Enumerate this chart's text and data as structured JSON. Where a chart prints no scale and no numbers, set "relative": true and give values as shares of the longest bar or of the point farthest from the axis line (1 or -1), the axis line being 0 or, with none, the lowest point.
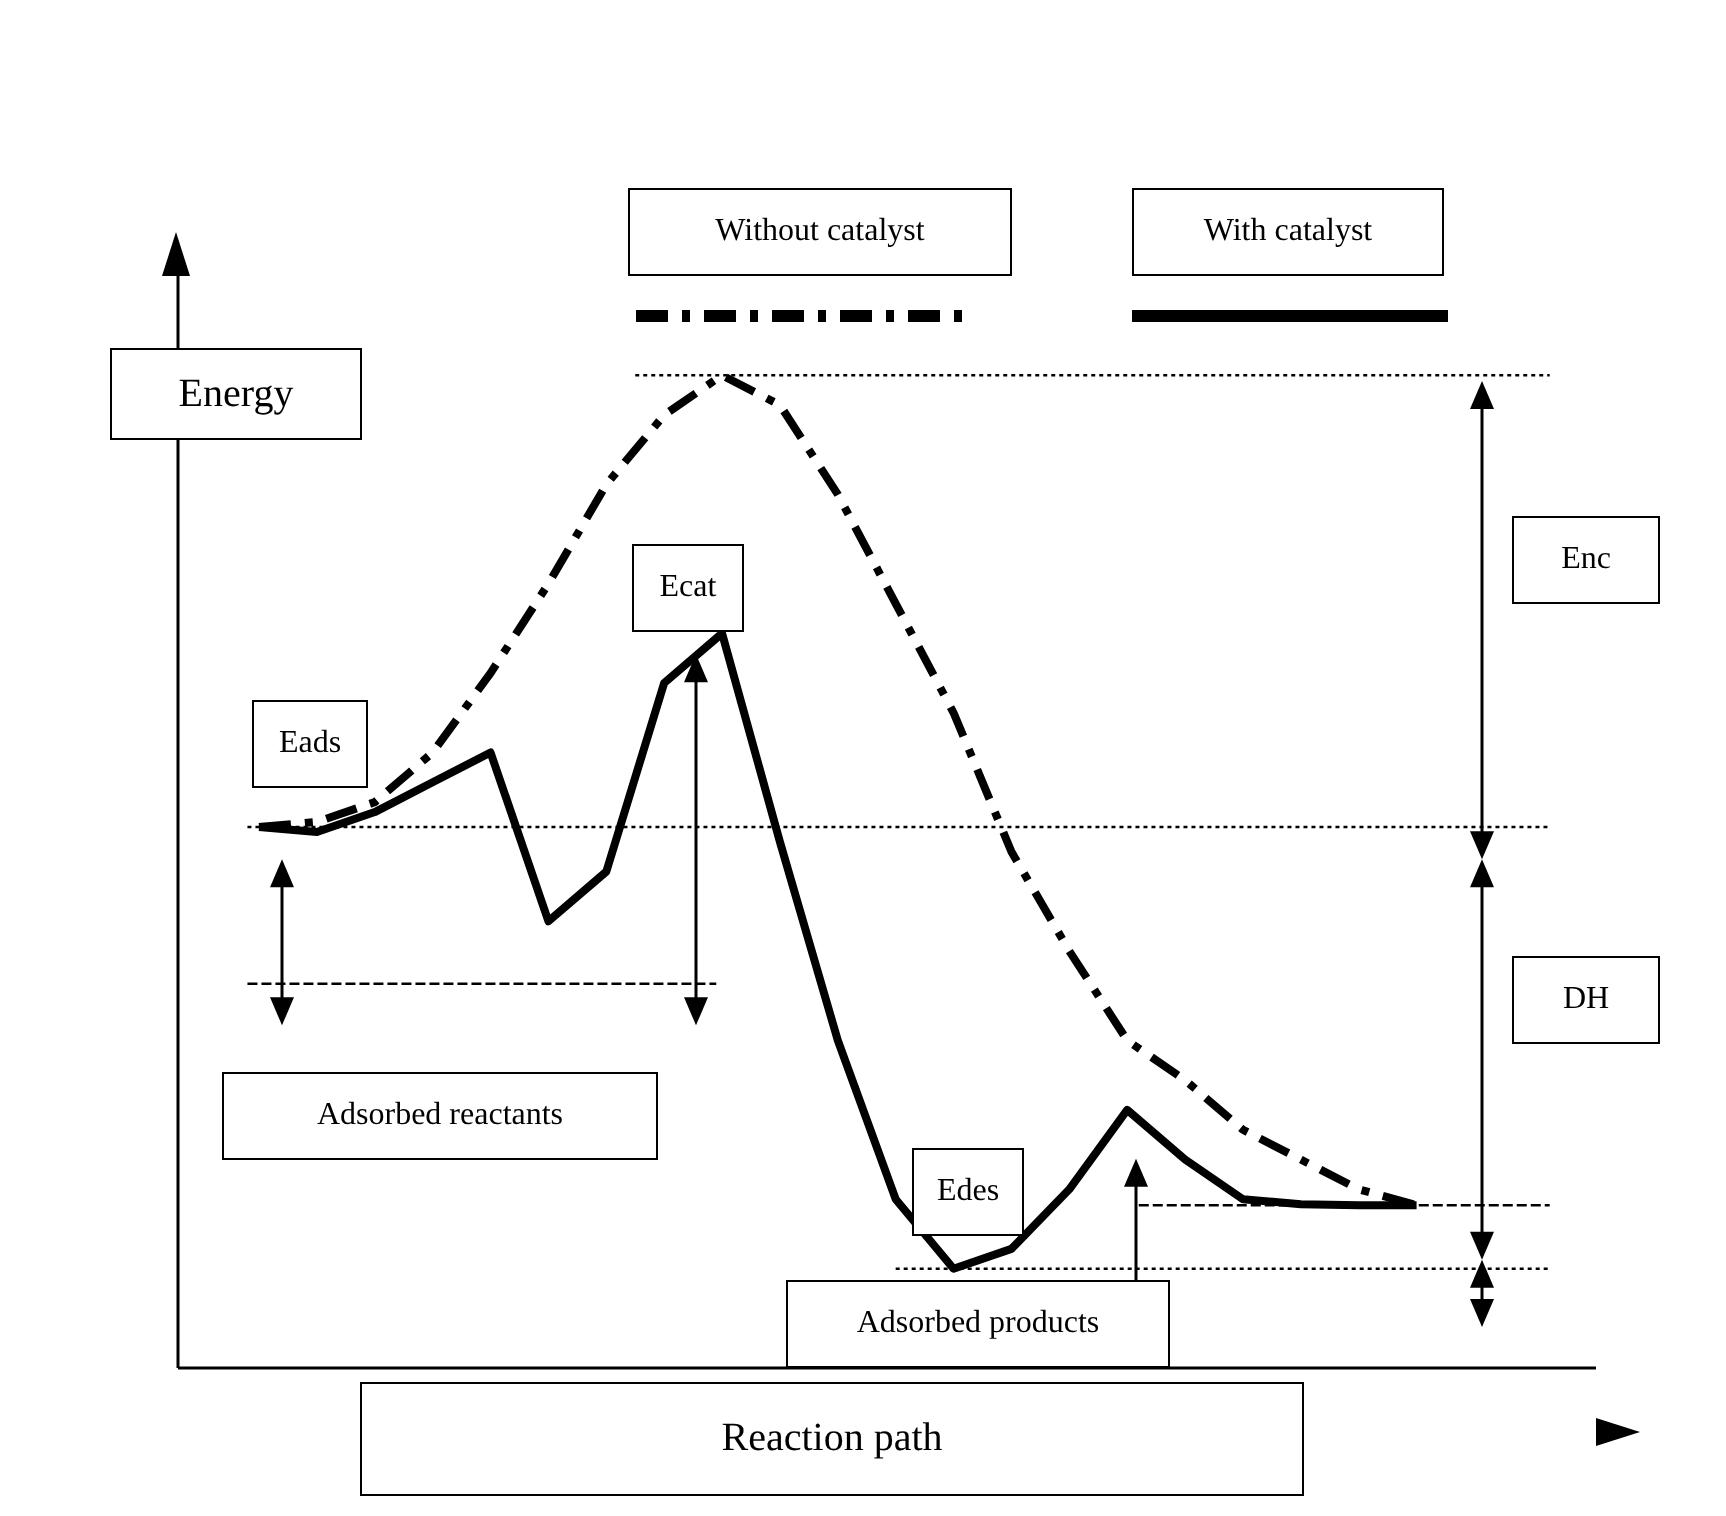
{
  "chart_data": {
    "type": "line",
    "relative": true,
    "xlabel": "Reaction path",
    "ylabel": "Energy",
    "legend": "top",
    "categories": [
      null,
      null,
      null,
      null,
      null,
      null,
      null,
      null,
      null,
      null,
      null,
      null,
      null,
      null,
      null,
      null,
      null,
      null,
      null,
      null,
      null
    ],
    "series": [
      {
        "name": "Without catalyst",
        "color": "#000000",
        "line_style": "dashed",
        "values": [
          0.545,
          0.55,
          0.57,
          0.62,
          0.7,
          0.79,
          0.89,
          0.96,
          1,
          0.97,
          0.88,
          0.77,
          0.66,
          0.52,
          0.42,
          0.33,
          0.29,
          0.24,
          0.21,
          0.18,
          0.164
        ]
      },
      {
        "name": "With catalyst",
        "color": "#000000",
        "line_style": "solid",
        "values": [
          0.545,
          0.54,
          0.56,
          0.59,
          0.62,
          0.45,
          0.5,
          0.69,
          0.74,
          0.53,
          0.33,
          0.17,
          0.1,
          0.12,
          0.18,
          0.26,
          0.21,
          0.17,
          0.165,
          0.164,
          0.164
        ]
      }
    ],
    "ref_lines": [
      {
        "axis": "y",
        "value": 1,
        "line_style": "dotted"
      },
      {
        "axis": "y",
        "value": 0.545,
        "line_style": "dotted"
      },
      {
        "axis": "y",
        "value": 0.387,
        "line_style": "dashed"
      },
      {
        "axis": "y",
        "value": 0.164,
        "line_style": "dashed"
      },
      {
        "axis": "y",
        "value": 0.1,
        "line_style": "dotted"
      }
    ],
    "annotations": [
      "Eads",
      "Ecat",
      "Edes",
      "Enc",
      "DH",
      "Adsorbed reactants",
      "Adsorbed products"
    ]
  }
}
